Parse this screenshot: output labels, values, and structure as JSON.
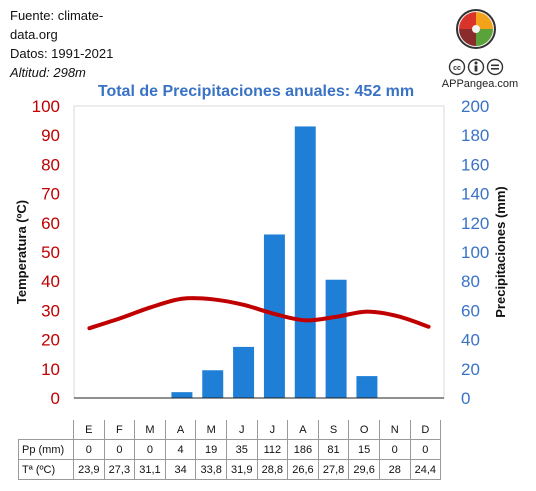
{
  "source": {
    "line1": "Fuente: climate-",
    "line2": "data.org",
    "line3": "Datos: 1991-2021",
    "altitude": "Altitud: 298m"
  },
  "logo": {
    "site": "APPangea.com",
    "cc_icons": [
      "cc-icon",
      "by-icon",
      "eq-icon"
    ]
  },
  "colors": {
    "bars": "#1f7ed6",
    "temp_line": "#c00000",
    "left_axis": "#c00000",
    "right_axis": "#3a73c6",
    "title": "#3a73c6"
  },
  "chart_data": {
    "type": "bar",
    "title": "Total de Precipitaciones anuales: 452 mm",
    "categories": [
      "E",
      "F",
      "M",
      "A",
      "M",
      "J",
      "J",
      "A",
      "S",
      "O",
      "N",
      "D"
    ],
    "series": [
      {
        "name": "Pp (mm)",
        "type": "bar",
        "axis": "right",
        "values": [
          0,
          0,
          0,
          4,
          19,
          35,
          112,
          186,
          81,
          15,
          0,
          0
        ]
      },
      {
        "name": "Tª (ºC)",
        "type": "line",
        "axis": "left",
        "values": [
          23.9,
          27.3,
          31.1,
          34,
          33.8,
          31.9,
          28.8,
          26.6,
          27.8,
          29.6,
          28,
          24.4
        ]
      }
    ],
    "ylabel_left": "Temperatura (ºC)",
    "ylabel_right": "Precipitaciones (mm)",
    "ylim_left": [
      0,
      100
    ],
    "ylim_right": [
      0,
      200
    ],
    "left_ticks": [
      0,
      10,
      20,
      30,
      40,
      50,
      60,
      70,
      80,
      90,
      100
    ],
    "right_ticks": [
      0,
      20,
      40,
      60,
      80,
      100,
      120,
      140,
      160,
      180,
      200
    ],
    "grid": false
  },
  "table": {
    "rows": [
      {
        "label": "Pp (mm)",
        "values": [
          "0",
          "0",
          "0",
          "4",
          "19",
          "35",
          "112",
          "186",
          "81",
          "15",
          "0",
          "0"
        ]
      },
      {
        "label": "Tª (ºC)",
        "values": [
          "23,9",
          "27,3",
          "31,1",
          "34",
          "33,8",
          "31,9",
          "28,8",
          "26,6",
          "27,8",
          "29,6",
          "28",
          "24,4"
        ]
      }
    ]
  }
}
